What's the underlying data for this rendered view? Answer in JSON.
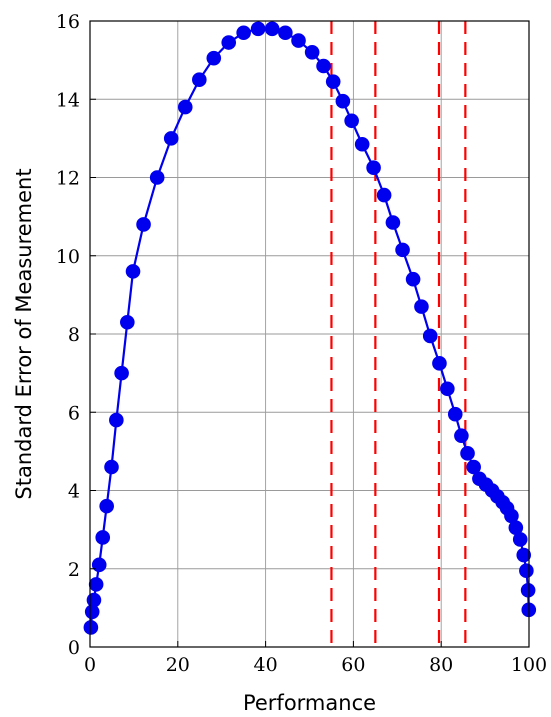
{
  "chart_data": {
    "type": "line",
    "title": "",
    "xlabel": "Performance",
    "ylabel": "Standard Error of Measurement",
    "xlim": [
      0,
      100
    ],
    "ylim": [
      0,
      16
    ],
    "xticks": [
      0,
      20,
      40,
      60,
      80,
      100
    ],
    "yticks": [
      0,
      2,
      4,
      6,
      8,
      10,
      12,
      14,
      16
    ],
    "grid": true,
    "legend": "none",
    "series_color": "#0000ee",
    "reference_line_color": "#ff0000",
    "series": [
      {
        "x": [
          0.2,
          0.5,
          0.9,
          1.4,
          2.1,
          2.9,
          3.8,
          4.9,
          6.0,
          7.2,
          8.5,
          9.8,
          12.2,
          15.3,
          18.5,
          21.7,
          24.9,
          28.2,
          31.6,
          35.0,
          38.3,
          41.5,
          44.5,
          47.5,
          50.6,
          53.2,
          55.4,
          57.6,
          59.6,
          62.0,
          64.6,
          67.0,
          69.0,
          71.2,
          73.6,
          75.5,
          77.5,
          79.6,
          81.4,
          83.2,
          84.6,
          86.0,
          87.4,
          88.7,
          90.2,
          91.6,
          92.8,
          94.0,
          95.0,
          96.0,
          97.0,
          98.0,
          98.8,
          99.4,
          99.8,
          99.95
        ],
        "y": [
          0.5,
          0.9,
          1.2,
          1.6,
          2.1,
          2.8,
          3.6,
          4.6,
          5.8,
          7.0,
          8.3,
          9.6,
          10.8,
          12.0,
          13.0,
          13.8,
          14.5,
          15.05,
          15.45,
          15.7,
          15.8,
          15.8,
          15.7,
          15.5,
          15.2,
          14.85,
          14.45,
          13.95,
          13.45,
          12.85,
          12.25,
          11.55,
          10.85,
          10.15,
          9.4,
          8.7,
          7.95,
          7.25,
          6.6,
          5.95,
          5.4,
          4.95,
          4.6,
          4.3,
          4.15,
          4.0,
          3.85,
          3.7,
          3.55,
          3.35,
          3.05,
          2.75,
          2.35,
          1.95,
          1.45,
          0.95
        ]
      }
    ],
    "reference_lines_x": [
      55.0,
      65.0,
      79.5,
      85.5
    ]
  }
}
